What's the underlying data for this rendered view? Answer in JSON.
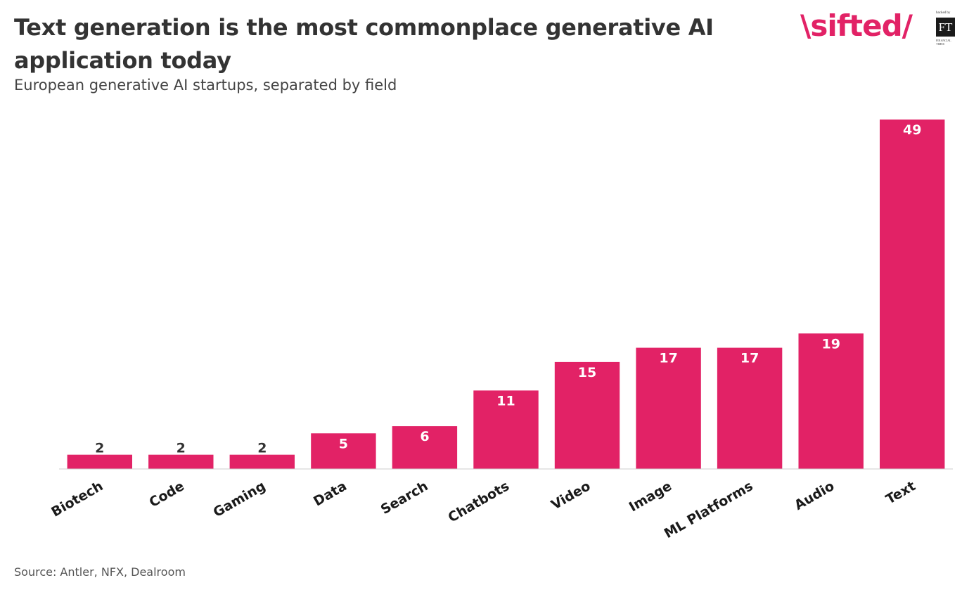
{
  "header": {
    "title": "Text generation is the most commonplace generative AI application today",
    "subtitle": "European generative AI startups, separated by field"
  },
  "logo": {
    "wordmark": "\\sifted/",
    "ft_tagline": "backed by",
    "ft_mark": "FT",
    "ft_name": "FINANCIAL TIMES"
  },
  "footer": {
    "source": "Source: Antler, NFX, Dealroom"
  },
  "colors": {
    "bar": "#e22266",
    "label_outside": "#333333",
    "label_inside": "#ffffff",
    "axis": "#cccccc",
    "brand": "#e22266"
  },
  "chart_data": {
    "type": "bar",
    "categories": [
      "Biotech",
      "Code",
      "Gaming",
      "Data",
      "Search",
      "Chatbots",
      "Video",
      "Image",
      "ML Platforms",
      "Audio",
      "Text"
    ],
    "values": [
      2,
      2,
      2,
      5,
      6,
      11,
      15,
      17,
      17,
      19,
      49
    ],
    "title": "Text generation is the most commonplace generative AI application today",
    "subtitle": "European generative AI startups, separated by field",
    "xlabel": "",
    "ylabel": "",
    "ylim": [
      0,
      49
    ],
    "grid": false,
    "legend": "none",
    "data_labels": true
  }
}
